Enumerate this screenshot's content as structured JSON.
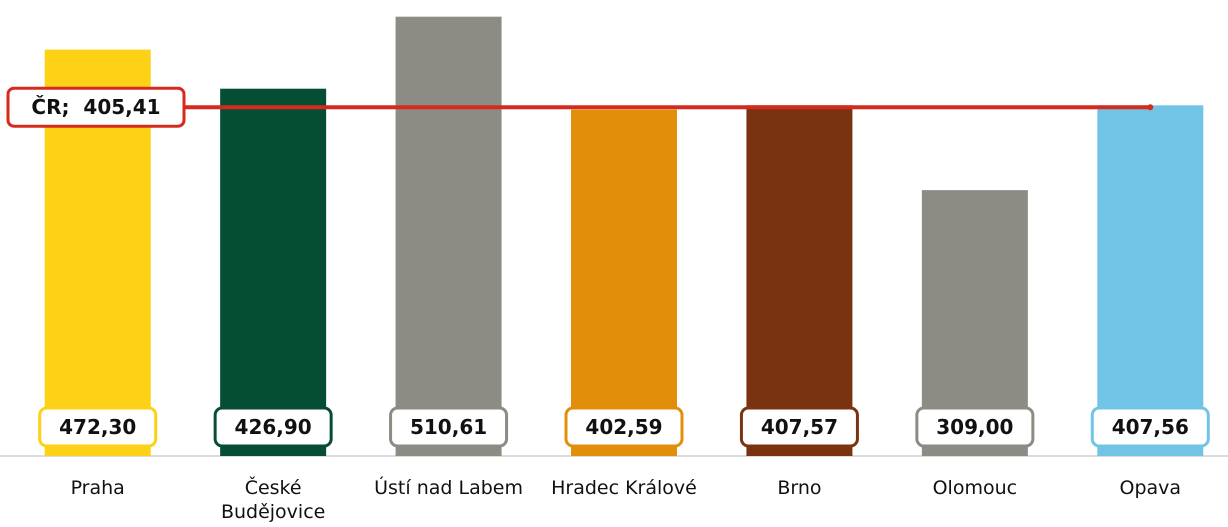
{
  "chart_data": {
    "type": "bar",
    "categories": [
      "Praha",
      "České Budějovice",
      "Ústí nad Labem",
      "Hradec Králové",
      "Brno",
      "Olomouc",
      "Opava"
    ],
    "values": [
      472.3,
      426.9,
      510.61,
      402.59,
      407.57,
      309.0,
      407.56
    ],
    "value_labels": [
      "472,30",
      "426,90",
      "510,61",
      "402,59",
      "407,57",
      "309,00",
      "407,56"
    ],
    "colors": [
      "#fcd116",
      "#064e33",
      "#8c8b84",
      "#e38e0a",
      "#7a3311",
      "#8c8b84",
      "#72c4e6"
    ],
    "ylim": [
      0,
      530
    ],
    "reference_line": {
      "value": 405.41,
      "label": "ČR;  405,41",
      "color": "#d52b1e"
    }
  }
}
